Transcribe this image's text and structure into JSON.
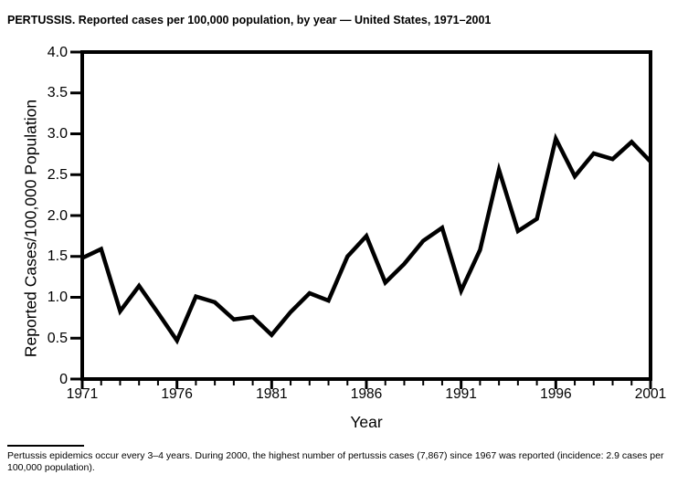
{
  "title": "PERTUSSIS. Reported cases per 100,000 population, by year — United States, 1971–2001",
  "footnote": "Pertussis epidemics occur every 3–4 years. During 2000, the highest number of pertussis cases (7,867) since 1967 was reported (incidence: 2.9 cases per 100,000 population).",
  "colors": {
    "line": "#000000",
    "axis": "#000000",
    "text": "#000000",
    "background": "#ffffff"
  },
  "chart_data": {
    "type": "line",
    "title": "PERTUSSIS. Reported cases per 100,000 population, by year — United States, 1971–2001",
    "xlabel": "Year",
    "ylabel": "Reported Cases/100,000 Population",
    "xlim": [
      1971,
      2001
    ],
    "ylim": [
      0,
      4.0
    ],
    "grid": false,
    "legend": false,
    "x_major_ticks": [
      1971,
      1976,
      1981,
      1986,
      1991,
      1996,
      2001
    ],
    "x_major_tick_labels": [
      "1971",
      "1976",
      "1981",
      "1986",
      "1991",
      "1996",
      "2001"
    ],
    "x_minor_tick_interval": 1,
    "y_ticks": [
      0,
      0.5,
      1.0,
      1.5,
      2.0,
      2.5,
      3.0,
      3.5,
      4.0
    ],
    "y_tick_labels": [
      "0",
      "0.5",
      "1.0",
      "1.5",
      "2.0",
      "2.5",
      "3.0",
      "3.5",
      "4.0"
    ],
    "x": [
      1971,
      1972,
      1973,
      1974,
      1975,
      1976,
      1977,
      1978,
      1979,
      1980,
      1981,
      1982,
      1983,
      1984,
      1985,
      1986,
      1987,
      1988,
      1989,
      1990,
      1991,
      1992,
      1993,
      1994,
      1995,
      1996,
      1997,
      1998,
      1999,
      2000,
      2001
    ],
    "values": [
      1.48,
      1.59,
      0.83,
      1.14,
      0.81,
      0.47,
      1.01,
      0.94,
      0.73,
      0.76,
      0.54,
      0.82,
      1.05,
      0.96,
      1.5,
      1.75,
      1.18,
      1.41,
      1.69,
      1.85,
      1.08,
      1.58,
      2.56,
      1.81,
      1.96,
      2.94,
      2.48,
      2.76,
      2.69,
      2.9,
      2.66
    ]
  }
}
